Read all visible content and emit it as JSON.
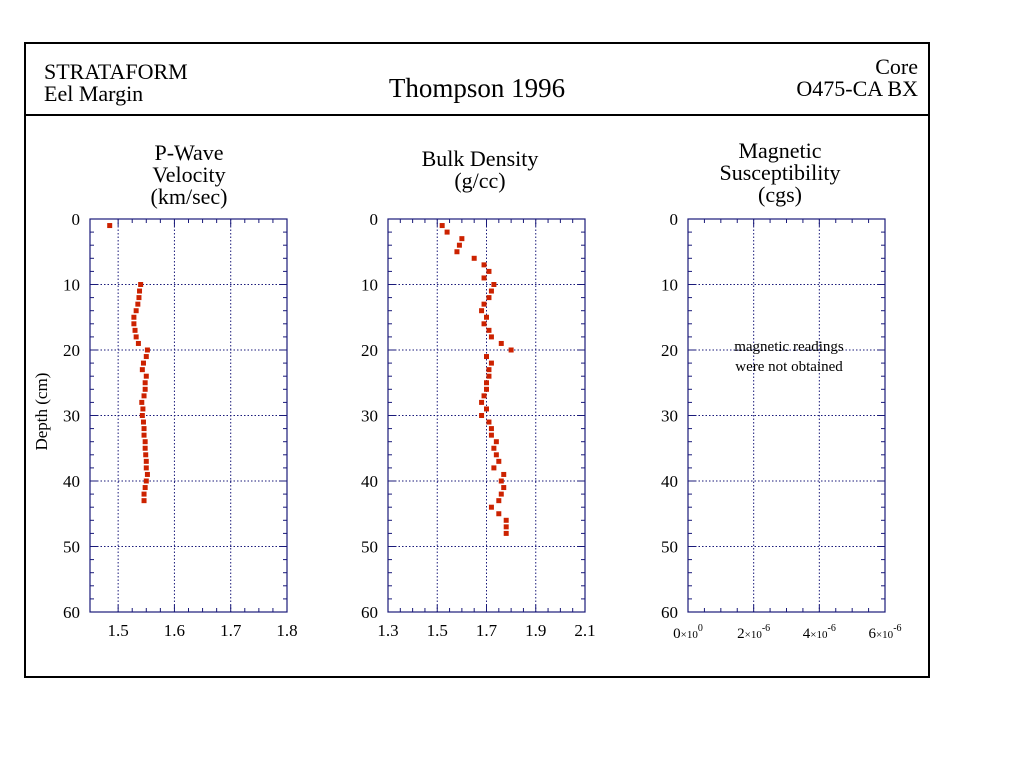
{
  "header": {
    "left_line1": "STRATAFORM",
    "left_line2": "Eel Margin",
    "title": "Thompson 1996",
    "right_line1": "Core",
    "right_line2": "O475-CA BX"
  },
  "colors": {
    "marker": "#cc2200",
    "grid": "#1a1a7a",
    "frame": "#000000"
  },
  "chart_data": [
    {
      "type": "scatter",
      "title_lines": [
        "P-Wave",
        "Velocity",
        "(km/sec)"
      ],
      "ylabel": "Depth (cm)",
      "xlim": [
        1.45,
        1.8
      ],
      "ylim": [
        0,
        60
      ],
      "y_inverted": true,
      "xticks": [
        1.5,
        1.6,
        1.7,
        1.8
      ],
      "xtick_labels": [
        "1.5",
        "1.6",
        "1.7",
        "1.8"
      ],
      "yticks": [
        0,
        10,
        20,
        30,
        40,
        50,
        60
      ],
      "ytick_labels": [
        "0",
        "10",
        "20",
        "30",
        "40",
        "50",
        "60"
      ],
      "grid": true,
      "points": [
        [
          1.485,
          1
        ],
        [
          1.54,
          10
        ],
        [
          1.538,
          11
        ],
        [
          1.537,
          12
        ],
        [
          1.535,
          13
        ],
        [
          1.532,
          14
        ],
        [
          1.528,
          15
        ],
        [
          1.528,
          16
        ],
        [
          1.53,
          17
        ],
        [
          1.532,
          18
        ],
        [
          1.536,
          19
        ],
        [
          1.552,
          20
        ],
        [
          1.55,
          21
        ],
        [
          1.545,
          22
        ],
        [
          1.543,
          23
        ],
        [
          1.55,
          24
        ],
        [
          1.548,
          25
        ],
        [
          1.548,
          26
        ],
        [
          1.546,
          27
        ],
        [
          1.542,
          28
        ],
        [
          1.544,
          29
        ],
        [
          1.543,
          30
        ],
        [
          1.545,
          31
        ],
        [
          1.546,
          32
        ],
        [
          1.546,
          33
        ],
        [
          1.548,
          34
        ],
        [
          1.548,
          35
        ],
        [
          1.549,
          36
        ],
        [
          1.55,
          37
        ],
        [
          1.55,
          38
        ],
        [
          1.552,
          39
        ],
        [
          1.55,
          40
        ],
        [
          1.548,
          41
        ],
        [
          1.546,
          42
        ],
        [
          1.546,
          43
        ]
      ]
    },
    {
      "type": "scatter",
      "title_lines": [
        "Bulk Density",
        "(g/cc)"
      ],
      "xlim": [
        1.3,
        2.1
      ],
      "ylim": [
        0,
        60
      ],
      "y_inverted": true,
      "xticks": [
        1.3,
        1.5,
        1.7,
        1.9,
        2.1
      ],
      "xtick_labels": [
        "1.3",
        "1.5",
        "1.7",
        "1.9",
        "2.1"
      ],
      "yticks": [
        0,
        10,
        20,
        30,
        40,
        50,
        60
      ],
      "ytick_labels": [
        "0",
        "10",
        "20",
        "30",
        "40",
        "50",
        "60"
      ],
      "grid": true,
      "points": [
        [
          1.52,
          1
        ],
        [
          1.54,
          2
        ],
        [
          1.6,
          3
        ],
        [
          1.59,
          4
        ],
        [
          1.58,
          5
        ],
        [
          1.65,
          6
        ],
        [
          1.69,
          7
        ],
        [
          1.71,
          8
        ],
        [
          1.69,
          9
        ],
        [
          1.73,
          10
        ],
        [
          1.72,
          11
        ],
        [
          1.71,
          12
        ],
        [
          1.69,
          13
        ],
        [
          1.68,
          14
        ],
        [
          1.7,
          15
        ],
        [
          1.69,
          16
        ],
        [
          1.71,
          17
        ],
        [
          1.72,
          18
        ],
        [
          1.76,
          19
        ],
        [
          1.8,
          20
        ],
        [
          1.7,
          21
        ],
        [
          1.72,
          22
        ],
        [
          1.71,
          23
        ],
        [
          1.71,
          24
        ],
        [
          1.7,
          25
        ],
        [
          1.7,
          26
        ],
        [
          1.69,
          27
        ],
        [
          1.68,
          28
        ],
        [
          1.7,
          29
        ],
        [
          1.68,
          30
        ],
        [
          1.71,
          31
        ],
        [
          1.72,
          32
        ],
        [
          1.72,
          33
        ],
        [
          1.74,
          34
        ],
        [
          1.73,
          35
        ],
        [
          1.74,
          36
        ],
        [
          1.75,
          37
        ],
        [
          1.73,
          38
        ],
        [
          1.77,
          39
        ],
        [
          1.76,
          40
        ],
        [
          1.77,
          41
        ],
        [
          1.76,
          42
        ],
        [
          1.75,
          43
        ],
        [
          1.72,
          44
        ],
        [
          1.75,
          45
        ],
        [
          1.78,
          46
        ],
        [
          1.78,
          47
        ],
        [
          1.78,
          48
        ]
      ]
    },
    {
      "type": "scatter",
      "title_lines": [
        "Magnetic",
        "Susceptibility",
        "(cgs)"
      ],
      "xlim": [
        0,
        6e-06
      ],
      "ylim": [
        0,
        60
      ],
      "y_inverted": true,
      "xticks": [
        0,
        2e-06,
        4e-06,
        6e-06
      ],
      "xtick_labels": [
        {
          "mant": "0",
          "exp": "0"
        },
        {
          "mant": "2",
          "exp": "-6"
        },
        {
          "mant": "4",
          "exp": "-6"
        },
        {
          "mant": "6",
          "exp": "-6"
        }
      ],
      "yticks": [
        0,
        10,
        20,
        30,
        40,
        50,
        60
      ],
      "ytick_labels": [
        "0",
        "10",
        "20",
        "30",
        "40",
        "50",
        "60"
      ],
      "grid": true,
      "annotation": [
        "magnetic readings",
        "were not obtained"
      ],
      "points": []
    }
  ]
}
